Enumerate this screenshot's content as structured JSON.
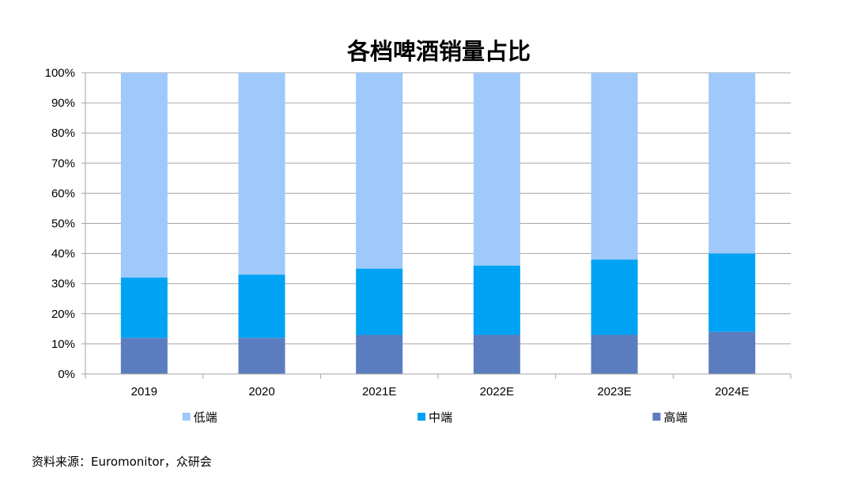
{
  "chart_data": {
    "type": "bar",
    "stacked": true,
    "title": "各档啤酒销量占比",
    "categories": [
      "2019",
      "2020",
      "2021E",
      "2022E",
      "2023E",
      "2024E"
    ],
    "series": [
      {
        "name": "高端",
        "color": "#5B7DBF",
        "values": [
          12,
          12,
          13,
          13,
          13,
          14
        ]
      },
      {
        "name": "中端",
        "color": "#00A2F3",
        "values": [
          20,
          21,
          22,
          23,
          25,
          26
        ]
      },
      {
        "name": "低端",
        "color": "#9FC9FA",
        "values": [
          68,
          67,
          65,
          64,
          62,
          60
        ]
      }
    ],
    "legend_order": [
      "低端",
      "中端",
      "高端"
    ],
    "ylim": [
      0,
      100
    ],
    "yticks": [
      "0%",
      "10%",
      "20%",
      "30%",
      "40%",
      "50%",
      "60%",
      "70%",
      "80%",
      "90%",
      "100%"
    ],
    "grid": true,
    "legend": "bottom"
  },
  "source": "资料来源：Euromonitor，众研会"
}
